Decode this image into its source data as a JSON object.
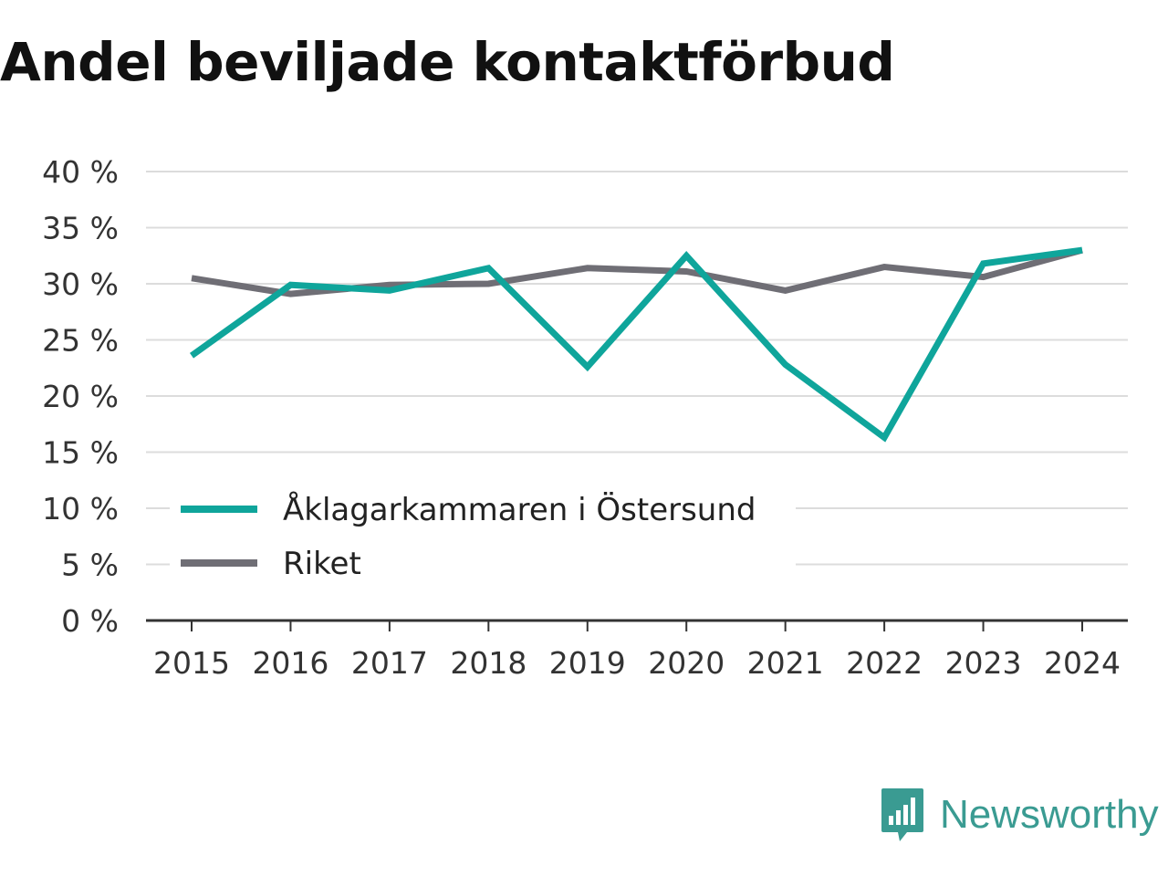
{
  "chart_data": {
    "type": "line",
    "title": "Andel beviljade kontaktförbud",
    "xlabel": "",
    "ylabel": "",
    "categories": [
      "2015",
      "2016",
      "2017",
      "2018",
      "2019",
      "2020",
      "2021",
      "2022",
      "2023",
      "2024"
    ],
    "series": [
      {
        "name": "Åklagarkammaren i Östersund",
        "color": "#0fa59b",
        "values": [
          23.6,
          29.9,
          29.4,
          31.4,
          22.6,
          32.5,
          22.8,
          16.3,
          31.8,
          33.0
        ]
      },
      {
        "name": "Riket",
        "color": "#6f6e75",
        "values": [
          30.5,
          29.1,
          29.9,
          30.0,
          31.4,
          31.1,
          29.4,
          31.5,
          30.6,
          33.0
        ]
      }
    ],
    "ylim": [
      0,
      40
    ],
    "yticks": [
      0,
      5,
      10,
      15,
      20,
      25,
      30,
      35,
      40
    ],
    "ytick_labels": [
      "0 %",
      "5 %",
      "10 %",
      "15 %",
      "20 %",
      "25 %",
      "30 %",
      "35 %",
      "40 %"
    ],
    "grid": true,
    "legend_position": "bottom-left"
  },
  "branding": {
    "name": "Newsworthy",
    "icon": "bar-chart-speech-bubble-icon",
    "color": "#3a9b92"
  }
}
